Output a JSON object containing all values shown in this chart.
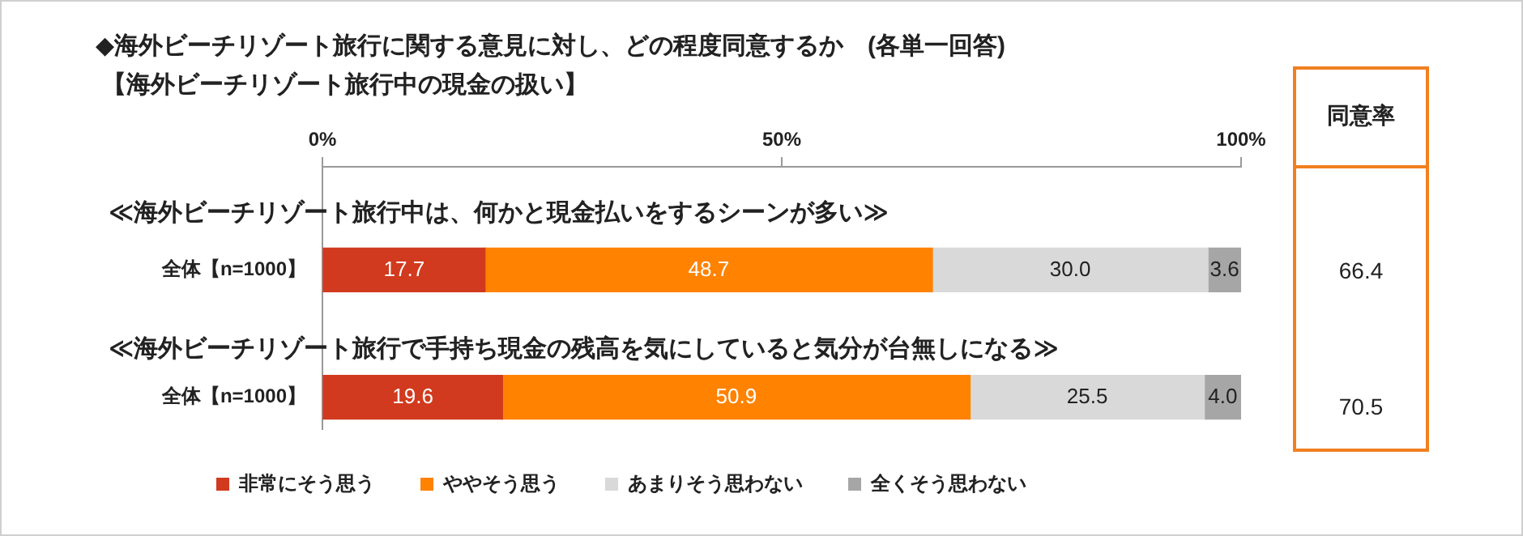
{
  "chart_data": {
    "type": "bar",
    "orientation": "horizontal",
    "stacked": true,
    "title": "◆海外ビーチリゾート旅行に関する意見に対し、どの程度同意するか　(各単一回答)",
    "subtitle": "【海外ビーチリゾート旅行中の現金の扱い】",
    "categories": [
      "全体【n=1000】",
      "全体【n=1000】"
    ],
    "series": [
      {
        "name": "非常にそう思う",
        "color": "#d13a1e",
        "values": [
          17.7,
          19.6
        ],
        "value_labels": [
          "17.7",
          "19.6"
        ]
      },
      {
        "name": "ややそう思う",
        "color": "#ff8200",
        "values": [
          48.7,
          50.9
        ],
        "value_labels": [
          "48.7",
          "50.9"
        ]
      },
      {
        "name": "あまりそう思わない",
        "color": "#d9d9d9",
        "values": [
          30.0,
          25.5
        ],
        "value_labels": [
          "30.0",
          "25.5"
        ]
      },
      {
        "name": "全くそう思わない",
        "color": "#a6a6a6",
        "values": [
          3.6,
          4.0
        ],
        "value_labels": [
          "3.6",
          "4.0"
        ]
      }
    ],
    "xlim": [
      0,
      100
    ],
    "xticks": [
      {
        "value": 0,
        "label": "0%"
      },
      {
        "value": 50,
        "label": "50%"
      },
      {
        "value": 100,
        "label": "100%"
      }
    ],
    "legend": "bottom",
    "grid": false,
    "annotations": [
      "≪海外ビーチリゾート旅行中は、何かと現金払いをするシーンが多い≫",
      "≪海外ビーチリゾート旅行で手持ち現金の残高を気にしていると気分が台無しになる≫",
      "同意率",
      "66.4",
      "70.5"
    ]
  }
}
